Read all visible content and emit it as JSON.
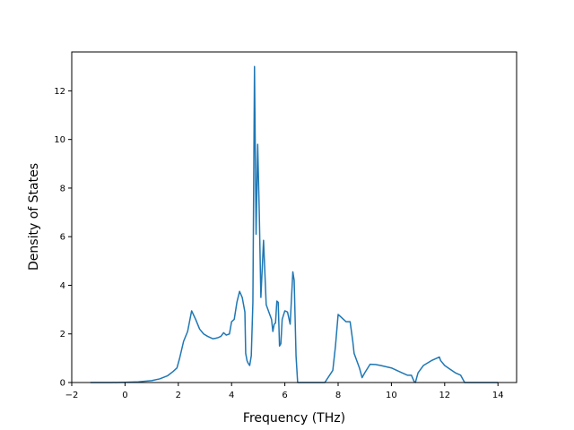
{
  "chart_data": {
    "type": "line",
    "title": "",
    "xlabel": "Frequency (THz)",
    "ylabel": "Density of States",
    "xlim": [
      -2.0,
      14.7
    ],
    "ylim": [
      0,
      13.6
    ],
    "xticks": [
      -2,
      0,
      2,
      4,
      6,
      8,
      10,
      12,
      14
    ],
    "yticks": [
      0,
      2,
      4,
      6,
      8,
      10,
      12
    ],
    "grid": false,
    "legend": "none",
    "line_color": "#1f77b4",
    "series": [
      {
        "x": [
          -1.3,
          -0.5,
          0.0,
          0.5,
          1.0,
          1.3,
          1.6,
          1.8,
          1.95,
          2.05,
          2.2,
          2.35,
          2.5,
          2.65,
          2.8,
          2.95,
          3.1,
          3.2,
          3.3,
          3.4,
          3.5,
          3.6,
          3.7,
          3.8,
          3.92,
          4.0,
          4.1,
          4.2,
          4.3,
          4.4,
          4.5,
          4.53,
          4.58,
          4.62,
          4.68,
          4.74,
          4.8,
          4.86,
          4.92,
          4.98,
          5.04,
          5.1,
          5.2,
          5.3,
          5.4,
          5.5,
          5.55,
          5.6,
          5.65,
          5.7,
          5.75,
          5.8,
          5.85,
          5.9,
          6.0,
          6.1,
          6.2,
          6.3,
          6.35,
          6.42,
          6.48,
          6.54,
          6.6,
          6.7,
          6.8,
          7.0,
          7.5,
          7.8,
          7.9,
          8.0,
          8.1,
          8.2,
          8.3,
          8.45,
          8.55,
          8.6,
          8.7,
          8.8,
          8.9,
          9.0,
          9.2,
          9.4,
          9.6,
          9.8,
          10.0,
          10.2,
          10.4,
          10.6,
          10.75,
          10.85,
          10.9,
          10.95,
          11.0,
          11.2,
          11.5,
          11.8,
          11.85,
          12.0,
          12.2,
          12.4,
          12.6,
          12.75,
          13.0,
          13.5,
          14.0
        ],
        "y": [
          0.0,
          0.0,
          0.01,
          0.03,
          0.08,
          0.15,
          0.28,
          0.45,
          0.6,
          1.0,
          1.7,
          2.1,
          2.95,
          2.6,
          2.2,
          2.0,
          1.9,
          1.85,
          1.8,
          1.82,
          1.85,
          1.9,
          2.05,
          1.95,
          2.0,
          2.5,
          2.6,
          3.3,
          3.75,
          3.5,
          2.9,
          1.2,
          0.9,
          0.8,
          0.7,
          1.1,
          3.3,
          13.0,
          6.1,
          9.8,
          7.0,
          3.5,
          5.85,
          3.2,
          2.9,
          2.6,
          2.1,
          2.4,
          2.45,
          3.35,
          3.3,
          1.5,
          1.6,
          2.6,
          2.95,
          2.9,
          2.4,
          4.55,
          4.2,
          1.1,
          0.0,
          0.0,
          0.0,
          0.0,
          0.0,
          0.0,
          0.0,
          0.5,
          1.5,
          2.8,
          2.7,
          2.6,
          2.5,
          2.5,
          1.7,
          1.2,
          0.9,
          0.6,
          0.2,
          0.4,
          0.75,
          0.74,
          0.7,
          0.65,
          0.6,
          0.5,
          0.4,
          0.3,
          0.3,
          0.05,
          0.0,
          0.2,
          0.4,
          0.7,
          0.9,
          1.05,
          0.9,
          0.7,
          0.55,
          0.4,
          0.3,
          0.0,
          0.0,
          0.0,
          0.0
        ]
      }
    ]
  }
}
